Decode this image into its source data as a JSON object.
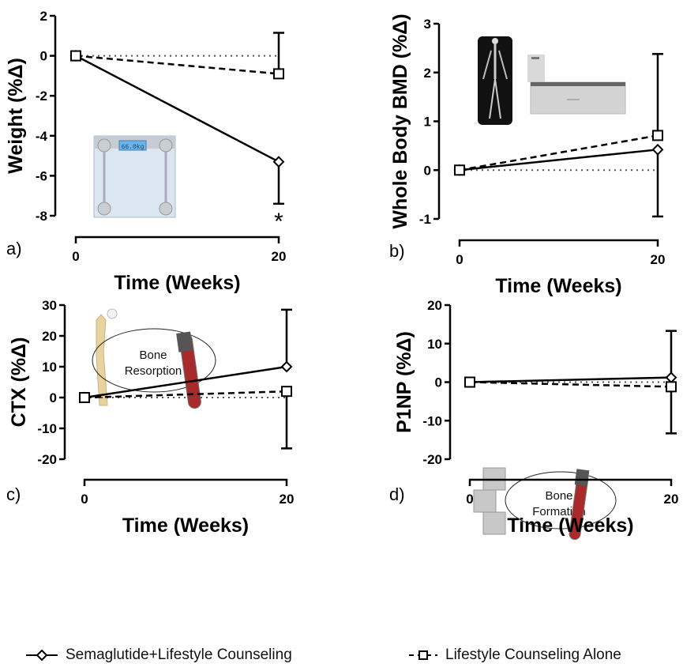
{
  "legend": {
    "series_a": "Semaglutide+Lifestyle Counseling",
    "series_b": "Lifestyle Counseling Alone"
  },
  "illustrations": {
    "scale_display": "66.0kg",
    "resorption": [
      "Bone",
      "Resorption"
    ],
    "formation": [
      "Bone",
      "Formation"
    ]
  },
  "chart_data": [
    {
      "type": "line",
      "panel": "a)",
      "ylabel": "Weight (%Δ)",
      "xlabel": "Time (Weeks)",
      "x": [
        0,
        20
      ],
      "xticks": [
        "0",
        "20"
      ],
      "ylim": [
        -8,
        2
      ],
      "yticks": [
        2,
        0,
        -2,
        -4,
        -6,
        -8
      ],
      "annotation": "*",
      "series": [
        {
          "name": "Semaglutide+Lifestyle Counseling",
          "marker": "diamond",
          "dash": "solid",
          "values": [
            0,
            -5.3
          ],
          "error_low": [
            null,
            -7.4
          ]
        },
        {
          "name": "Lifestyle Counseling Alone",
          "marker": "square",
          "dash": "dashed",
          "values": [
            0,
            -0.9
          ],
          "error_high": [
            null,
            1.15
          ]
        }
      ]
    },
    {
      "type": "line",
      "panel": "b)",
      "ylabel": "Whole Body BMD (%Δ)",
      "xlabel": "Time (Weeks)",
      "x": [
        0,
        20
      ],
      "xticks": [
        "0",
        "20"
      ],
      "ylim": [
        -1,
        3
      ],
      "yticks": [
        3,
        2,
        1,
        0,
        -1
      ],
      "series": [
        {
          "name": "Semaglutide+Lifestyle Counseling",
          "marker": "diamond",
          "dash": "solid",
          "values": [
            0,
            0.42
          ],
          "error_low": [
            null,
            -0.95
          ]
        },
        {
          "name": "Lifestyle Counseling Alone",
          "marker": "square",
          "dash": "dashed",
          "values": [
            0,
            0.71
          ],
          "error_high": [
            null,
            2.38
          ]
        }
      ]
    },
    {
      "type": "line",
      "panel": "c)",
      "ylabel": "CTX (%Δ)",
      "xlabel": "Time (Weeks)",
      "x": [
        0,
        20
      ],
      "xticks": [
        "0",
        "20"
      ],
      "ylim": [
        -20,
        30
      ],
      "yticks": [
        30,
        20,
        10,
        0,
        -10,
        -20
      ],
      "series": [
        {
          "name": "Semaglutide+Lifestyle Counseling",
          "marker": "diamond",
          "dash": "solid",
          "values": [
            0,
            10
          ],
          "error_high": [
            null,
            28.5
          ]
        },
        {
          "name": "Lifestyle Counseling Alone",
          "marker": "square",
          "dash": "dashed",
          "values": [
            0,
            2
          ],
          "error_low": [
            null,
            -16.5
          ]
        }
      ]
    },
    {
      "type": "line",
      "panel": "d)",
      "ylabel": "P1NP (%Δ)",
      "xlabel": "Time (Weeks)",
      "x": [
        0,
        20
      ],
      "xticks": [
        "0",
        "20"
      ],
      "ylim": [
        -20,
        20
      ],
      "yticks": [
        20,
        10,
        0,
        -10,
        -20
      ],
      "series": [
        {
          "name": "Semaglutide+Lifestyle Counseling",
          "marker": "diamond",
          "dash": "solid",
          "values": [
            0,
            1.2
          ],
          "error_high": [
            null,
            13.3
          ]
        },
        {
          "name": "Lifestyle Counseling Alone",
          "marker": "square",
          "dash": "dashed",
          "values": [
            0,
            -1.2
          ],
          "error_low": [
            null,
            -13.3
          ]
        }
      ]
    }
  ]
}
